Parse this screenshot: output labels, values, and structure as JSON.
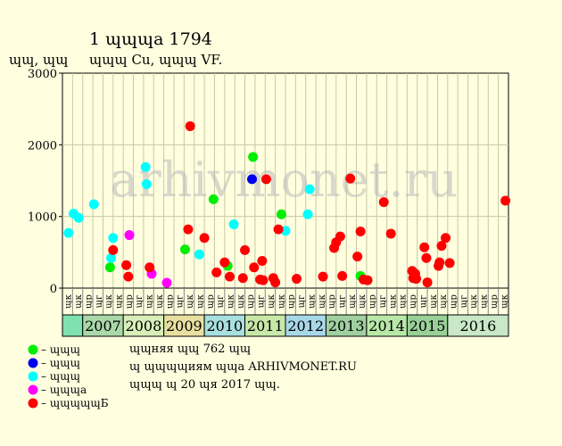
{
  "header": {
    "title": "1 ɰɰɰa 1794",
    "subtitle": "ɰɰɰ Cu, ɰɰɰ VF.",
    "yunit": "ɰɰ, ɰɰ"
  },
  "watermark": "arhivmonet.ru",
  "colors": {
    "cat1": "#00EE00",
    "cat2": "#0000EE",
    "cat3": "#00FFFF",
    "cat4": "#FF00FF",
    "cat5": "#FF0000",
    "grid": "#C8C8A0",
    "year_a": "#B6E6B6",
    "year_b": "#B6E6B6"
  },
  "chart_data": {
    "type": "scatter",
    "ylim": [
      0,
      3000
    ],
    "yticks": [
      "0",
      "1000",
      "2000",
      "3000"
    ],
    "grid": true,
    "legend_position": "bottom-left",
    "x_ticks": [
      "ɰк",
      "ɰк",
      "ɰр",
      "ɰг",
      "ɰк",
      "ɰк",
      "ɰр",
      "ɰг",
      "ɰк",
      "ɰк",
      "ɰр",
      "ɰг",
      "ɰк",
      "ɰк",
      "ɰр",
      "ɰг",
      "ɰк",
      "ɰк",
      "ɰр",
      "ɰг",
      "ɰк",
      "ɰк",
      "ɰр",
      "ɰг",
      "ɰк",
      "ɰк",
      "ɰр",
      "ɰг",
      "ɰк",
      "ɰк",
      "ɰр",
      "ɰг",
      "ɰк",
      "ɰк",
      "ɰр",
      "ɰг",
      "ɰк",
      "ɰк",
      "ɰр",
      "ɰг",
      "ɰк",
      "ɰк",
      "ɰр",
      "ɰк"
    ],
    "year_groups": [
      {
        "label": "",
        "start": 0,
        "span": 2,
        "color": "#7FE0B0"
      },
      {
        "label": "2007",
        "start": 2,
        "span": 4,
        "color": "#A9D8A9"
      },
      {
        "label": "2008",
        "start": 6,
        "span": 4,
        "color": "#D7EFB8"
      },
      {
        "label": "2009",
        "start": 10,
        "span": 4,
        "color": "#E8E0A0"
      },
      {
        "label": "2010",
        "start": 14,
        "span": 4,
        "color": "#A8E0E0"
      },
      {
        "label": "2011",
        "start": 18,
        "span": 4,
        "color": "#C8E8A8"
      },
      {
        "label": "2012",
        "start": 22,
        "span": 4,
        "color": "#A8D8E8"
      },
      {
        "label": "2013",
        "start": 26,
        "span": 4,
        "color": "#A0D0A0"
      },
      {
        "label": "2014",
        "start": 30,
        "span": 4,
        "color": "#B8E8A8"
      },
      {
        "label": "2015",
        "start": 34,
        "span": 4,
        "color": "#98D098"
      },
      {
        "label": "2016",
        "start": 38,
        "span": 6,
        "color": "#C8E8C8"
      }
    ],
    "series": [
      {
        "name": "ɰɰɰ",
        "color": "#00EE00",
        "points": [
          [
            4.2,
            290
          ],
          [
            11.6,
            540
          ],
          [
            14.4,
            1240
          ],
          [
            15.8,
            310
          ],
          [
            18.3,
            1830
          ],
          [
            21.1,
            1030
          ],
          [
            28.9,
            170
          ]
        ]
      },
      {
        "name": "ɰɰɰ",
        "color": "#0000EE",
        "points": [
          [
            18.2,
            1520
          ]
        ]
      },
      {
        "name": "ɰɰɰ",
        "color": "#00FFFF",
        "points": [
          [
            0.1,
            770
          ],
          [
            0.6,
            1040
          ],
          [
            1.1,
            980
          ],
          [
            2.6,
            1170
          ],
          [
            4.3,
            420
          ],
          [
            4.5,
            700
          ],
          [
            7.7,
            1690
          ],
          [
            7.8,
            1450
          ],
          [
            13.0,
            470
          ],
          [
            16.4,
            890
          ],
          [
            21.5,
            800
          ],
          [
            23.7,
            1030
          ],
          [
            23.9,
            1380
          ]
        ]
      },
      {
        "name": "ɰɰɰa",
        "color": "#FF00FF",
        "points": [
          [
            6.1,
            740
          ],
          [
            8.3,
            200
          ],
          [
            9.8,
            75
          ]
        ]
      },
      {
        "name": "ɰɰɰɰɰБ",
        "color": "#FF0000",
        "points": [
          [
            4.5,
            530
          ],
          [
            5.8,
            320
          ],
          [
            6.0,
            160
          ],
          [
            8.1,
            290
          ],
          [
            11.9,
            820
          ],
          [
            12.1,
            2260
          ],
          [
            13.5,
            700
          ],
          [
            14.7,
            220
          ],
          [
            15.5,
            360
          ],
          [
            16.0,
            160
          ],
          [
            17.3,
            140
          ],
          [
            17.5,
            530
          ],
          [
            18.4,
            290
          ],
          [
            19.0,
            120
          ],
          [
            19.2,
            380
          ],
          [
            19.3,
            110
          ],
          [
            19.6,
            1520
          ],
          [
            20.3,
            140
          ],
          [
            20.5,
            80
          ],
          [
            20.8,
            820
          ],
          [
            22.6,
            130
          ],
          [
            25.2,
            160
          ],
          [
            26.3,
            560
          ],
          [
            26.5,
            640
          ],
          [
            26.9,
            720
          ],
          [
            27.1,
            170
          ],
          [
            27.9,
            1530
          ],
          [
            28.6,
            440
          ],
          [
            28.9,
            790
          ],
          [
            29.2,
            120
          ],
          [
            29.6,
            110
          ],
          [
            31.2,
            1200
          ],
          [
            31.9,
            760
          ],
          [
            34.0,
            240
          ],
          [
            34.1,
            140
          ],
          [
            34.3,
            200
          ],
          [
            34.4,
            130
          ],
          [
            35.2,
            570
          ],
          [
            35.4,
            420
          ],
          [
            35.5,
            80
          ],
          [
            36.6,
            310
          ],
          [
            36.7,
            360
          ],
          [
            36.9,
            590
          ],
          [
            37.3,
            700
          ],
          [
            37.7,
            350
          ],
          [
            43.2,
            1220
          ]
        ]
      }
    ]
  },
  "legend": [
    {
      "label": "– ɰɰɰ",
      "color": "#00EE00"
    },
    {
      "label": "– ɰɰɰ",
      "color": "#0000EE"
    },
    {
      "label": "– ɰɰɰ",
      "color": "#00FFFF"
    },
    {
      "label": "– ɰɰɰa",
      "color": "#FF00FF"
    },
    {
      "label": "– ɰɰɰɰɰБ",
      "color": "#FF0000"
    }
  ],
  "notes": [
    "ɰɰняя ɰɰ 762 ɰɰ",
    "ɰ ɰɰɰɰиям ɰɰa ARHIVMONET.RU",
    "ɰɰɰ ɰ 20 ɰя 2017 ɰɰ."
  ]
}
